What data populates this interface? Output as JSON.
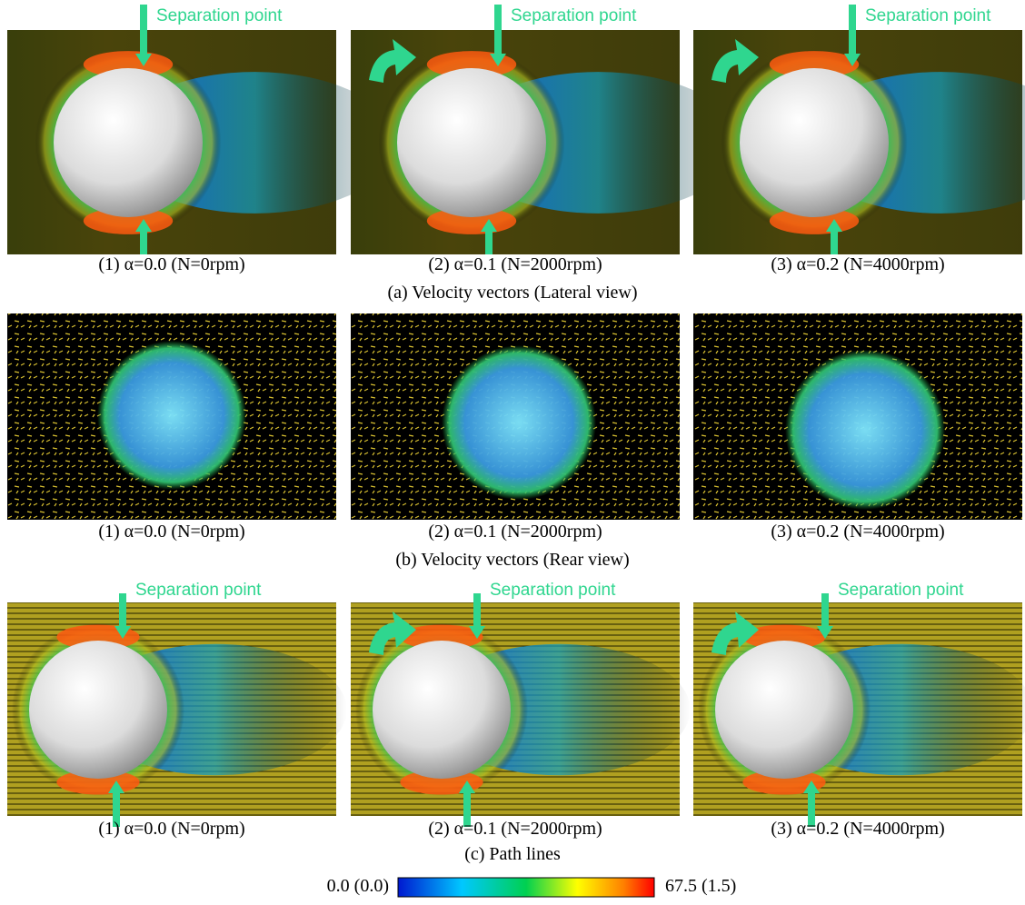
{
  "rows": [
    {
      "label": "(a) Velocity vectors (Lateral view)",
      "panels": [
        {
          "caption": "(1) α=0.0 (N=0rpm)",
          "annotation": "Separation point"
        },
        {
          "caption": "(2) α=0.1 (N=2000rpm)",
          "annotation": "Separation point"
        },
        {
          "caption": "(3) α=0.2 (N=4000rpm)",
          "annotation": "Separation point"
        }
      ]
    },
    {
      "label": "(b) Velocity vectors (Rear view)",
      "panels": [
        {
          "caption": "(1) α=0.0 (N=0rpm)"
        },
        {
          "caption": "(2) α=0.1 (N=2000rpm)"
        },
        {
          "caption": "(3) α=0.2 (N=4000rpm)"
        }
      ]
    },
    {
      "label": "(c) Path lines",
      "panels": [
        {
          "caption": "(1) α=0.0 (N=0rpm)",
          "annotation": "Separation point"
        },
        {
          "caption": "(2) α=0.1 (N=2000rpm)",
          "annotation": "Separation point"
        },
        {
          "caption": "(3) α=0.2 (N=4000rpm)",
          "annotation": "Separation point"
        }
      ]
    }
  ],
  "colorbar": {
    "min_label": "0.0 (0.0)",
    "max_label": "67.5 (1.5)"
  }
}
